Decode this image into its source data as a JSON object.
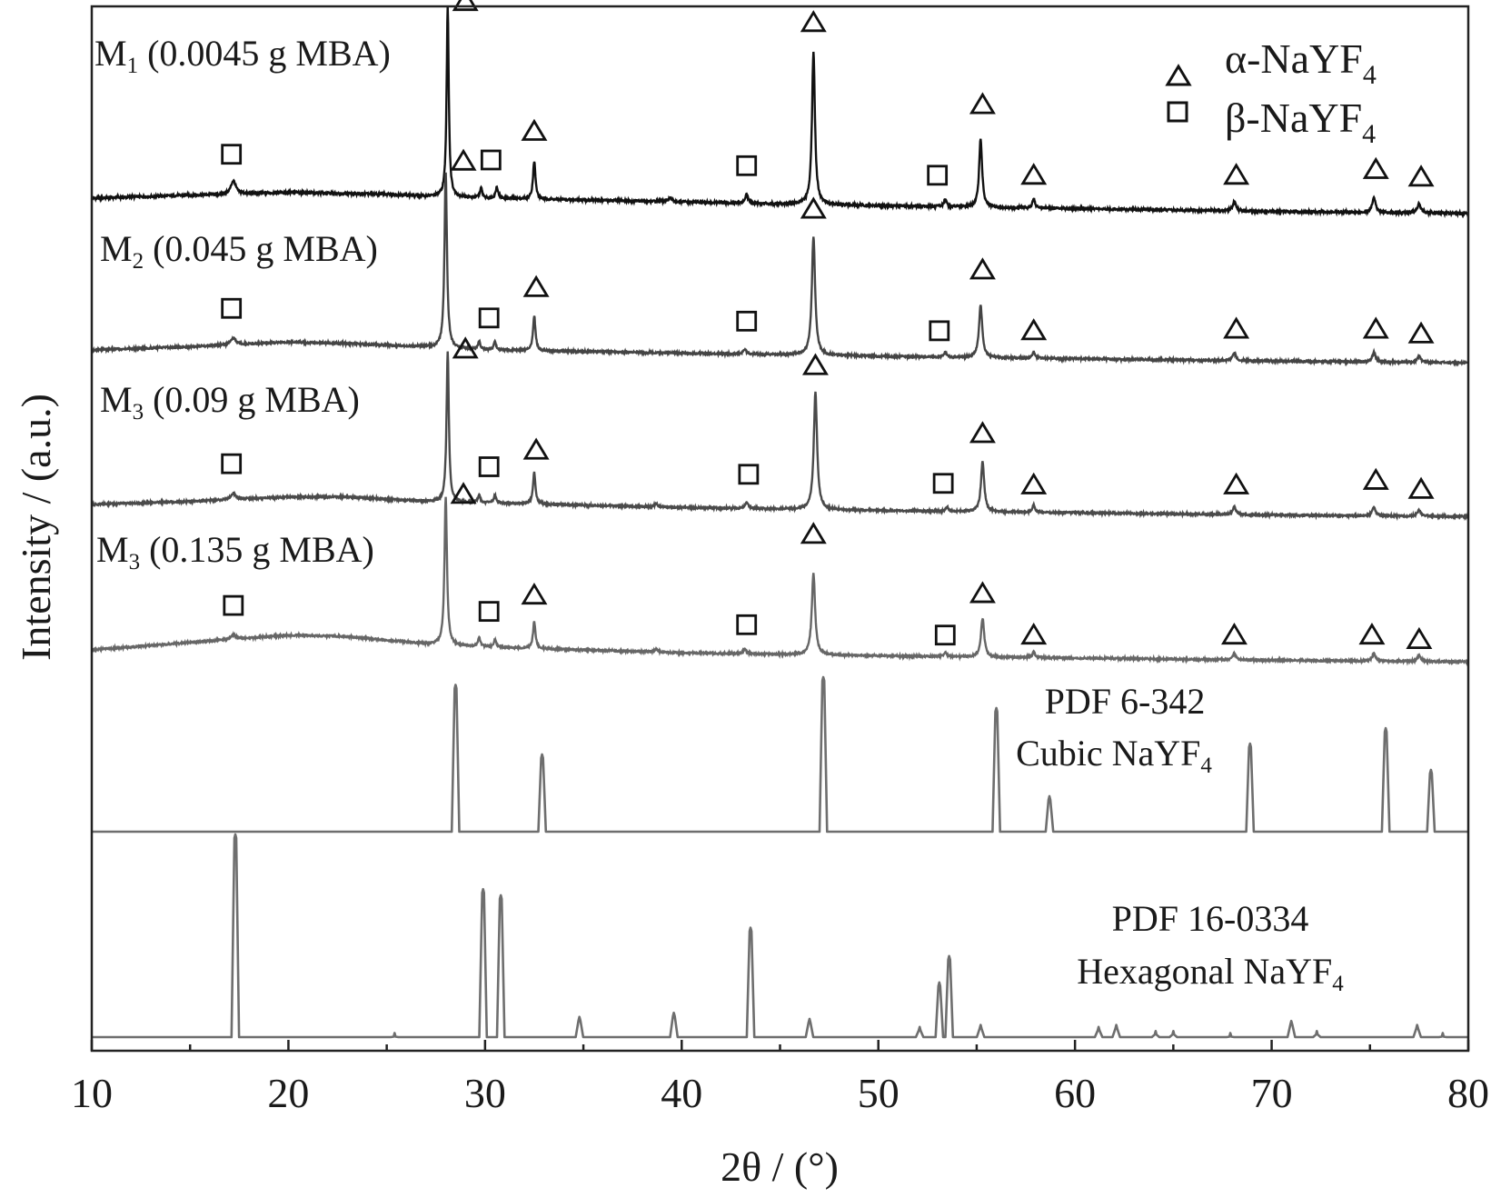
{
  "chart_data": {
    "type": "line",
    "xlabel": "2θ / (°)",
    "ylabel": "Intensity / (a.u.)",
    "xlim": [
      10,
      80
    ],
    "x_ticks": [
      "10",
      "20",
      "30",
      "40",
      "50",
      "60",
      "70",
      "80"
    ],
    "legend": {
      "position": "top-right",
      "entries": [
        {
          "symbol": "triangle",
          "label": "α-NaYF",
          "sub": "4",
          "phase": "alpha"
        },
        {
          "symbol": "square",
          "label": "β-NaYF",
          "sub": "4",
          "phase": "beta"
        }
      ]
    },
    "colors": {
      "m1": "#111111",
      "m2": "#444444",
      "m3": "#4a4a4a",
      "m4": "#666666",
      "ref": "#6e6e6e"
    },
    "series": [
      {
        "key": "m1",
        "label_main": "M",
        "label_sub": "1",
        "label_rest": " (0.0045 g MBA)",
        "baseline": [
          [
            10,
            0
          ],
          [
            15,
            0.015
          ],
          [
            20,
            0.03
          ],
          [
            25,
            0.02
          ],
          [
            27,
            0.01
          ],
          [
            30,
            0.0
          ],
          [
            40,
            -0.02
          ],
          [
            50,
            -0.04
          ],
          [
            60,
            -0.055
          ],
          [
            70,
            -0.07
          ],
          [
            80,
            -0.08
          ]
        ],
        "peaks": [
          [
            17.2,
            0.07,
            0.3
          ],
          [
            28.1,
            1.0,
            0.13
          ],
          [
            29.8,
            0.05,
            0.15
          ],
          [
            30.6,
            0.06,
            0.15
          ],
          [
            32.5,
            0.2,
            0.15
          ],
          [
            39.4,
            0.02,
            0.2
          ],
          [
            43.3,
            0.05,
            0.15
          ],
          [
            46.7,
            0.8,
            0.18
          ],
          [
            53.4,
            0.04,
            0.15
          ],
          [
            55.2,
            0.36,
            0.18
          ],
          [
            57.9,
            0.05,
            0.15
          ],
          [
            68.1,
            0.05,
            0.2
          ],
          [
            75.2,
            0.08,
            0.2
          ],
          [
            77.5,
            0.05,
            0.2
          ]
        ],
        "markers": {
          "alpha": [
            [
              29.0,
              1.03
            ],
            [
              32.5,
              0.35
            ],
            [
              46.7,
              0.92
            ],
            [
              55.3,
              0.49
            ],
            [
              57.9,
              0.12
            ],
            [
              68.2,
              0.12
            ],
            [
              75.3,
              0.15
            ],
            [
              77.6,
              0.11
            ]
          ],
          "beta": [
            [
              17.1,
              0.23
            ],
            [
              30.3,
              0.2
            ],
            [
              43.3,
              0.17
            ],
            [
              53.0,
              0.12
            ]
          ]
        }
      },
      {
        "key": "m2",
        "label_main": "M",
        "label_sub": "2",
        "label_rest": " (0.045 g MBA)",
        "baseline": [
          [
            10,
            0
          ],
          [
            15,
            0.02
          ],
          [
            20,
            0.05
          ],
          [
            23,
            0.04
          ],
          [
            27,
            0.02
          ],
          [
            30,
            0.0
          ],
          [
            40,
            -0.02
          ],
          [
            50,
            -0.04
          ],
          [
            60,
            -0.055
          ],
          [
            70,
            -0.07
          ],
          [
            80,
            -0.08
          ]
        ],
        "peaks": [
          [
            17.2,
            0.04,
            0.3
          ],
          [
            28.0,
            1.1,
            0.15
          ],
          [
            29.7,
            0.05,
            0.15
          ],
          [
            30.5,
            0.05,
            0.15
          ],
          [
            32.5,
            0.22,
            0.15
          ],
          [
            43.2,
            0.03,
            0.2
          ],
          [
            46.7,
            0.74,
            0.2
          ],
          [
            53.4,
            0.03,
            0.15
          ],
          [
            55.2,
            0.33,
            0.2
          ],
          [
            57.9,
            0.04,
            0.15
          ],
          [
            68.1,
            0.05,
            0.2
          ],
          [
            75.2,
            0.06,
            0.2
          ],
          [
            77.5,
            0.04,
            0.2
          ]
        ],
        "markers": {
          "alpha": [
            [
              28.9,
              1.18
            ],
            [
              32.6,
              0.39
            ],
            [
              46.7,
              0.88
            ],
            [
              55.3,
              0.5
            ],
            [
              57.9,
              0.12
            ],
            [
              68.2,
              0.13
            ],
            [
              75.3,
              0.13
            ],
            [
              77.6,
              0.1
            ]
          ],
          "beta": [
            [
              17.1,
              0.26
            ],
            [
              30.2,
              0.2
            ],
            [
              43.3,
              0.18
            ],
            [
              53.1,
              0.12
            ]
          ]
        }
      },
      {
        "key": "m3",
        "label_main": "M",
        "label_sub": "3",
        "label_rest": " (0.09 g MBA)",
        "baseline": [
          [
            10,
            0
          ],
          [
            15,
            0.02
          ],
          [
            20,
            0.05
          ],
          [
            23,
            0.05
          ],
          [
            27,
            0.02
          ],
          [
            30,
            0.01
          ],
          [
            40,
            -0.02
          ],
          [
            50,
            -0.04
          ],
          [
            60,
            -0.055
          ],
          [
            70,
            -0.07
          ],
          [
            80,
            -0.08
          ]
        ],
        "peaks": [
          [
            17.2,
            0.04,
            0.3
          ],
          [
            28.1,
            1.0,
            0.14
          ],
          [
            29.7,
            0.05,
            0.15
          ],
          [
            30.5,
            0.05,
            0.15
          ],
          [
            32.5,
            0.21,
            0.15
          ],
          [
            38.7,
            0.02,
            0.2
          ],
          [
            43.3,
            0.04,
            0.2
          ],
          [
            46.8,
            0.78,
            0.2
          ],
          [
            53.5,
            0.03,
            0.15
          ],
          [
            55.3,
            0.33,
            0.2
          ],
          [
            57.9,
            0.05,
            0.15
          ],
          [
            68.1,
            0.05,
            0.2
          ],
          [
            75.2,
            0.06,
            0.2
          ],
          [
            77.5,
            0.04,
            0.2
          ]
        ],
        "markers": {
          "alpha": [
            [
              29.0,
              1.03
            ],
            [
              32.6,
              0.36
            ],
            [
              46.8,
              0.92
            ],
            [
              55.3,
              0.47
            ],
            [
              57.9,
              0.13
            ],
            [
              68.2,
              0.13
            ],
            [
              75.3,
              0.16
            ],
            [
              77.6,
              0.1
            ]
          ],
          "beta": [
            [
              17.1,
              0.27
            ],
            [
              30.2,
              0.25
            ],
            [
              43.4,
              0.2
            ],
            [
              53.3,
              0.14
            ]
          ]
        }
      },
      {
        "key": "m4",
        "label_main": "M",
        "label_sub": "3",
        "label_rest": " (0.135 g MBA)",
        "baseline": [
          [
            10,
            0
          ],
          [
            15,
            0.05
          ],
          [
            20,
            0.1
          ],
          [
            23,
            0.09
          ],
          [
            27,
            0.04
          ],
          [
            30,
            0.02
          ],
          [
            40,
            -0.02
          ],
          [
            50,
            -0.04
          ],
          [
            60,
            -0.055
          ],
          [
            70,
            -0.07
          ],
          [
            80,
            -0.08
          ]
        ],
        "peaks": [
          [
            17.2,
            0.03,
            0.3
          ],
          [
            28.0,
            1.0,
            0.15
          ],
          [
            29.7,
            0.06,
            0.15
          ],
          [
            30.5,
            0.05,
            0.15
          ],
          [
            32.5,
            0.18,
            0.15
          ],
          [
            38.7,
            0.02,
            0.2
          ],
          [
            43.2,
            0.03,
            0.2
          ],
          [
            46.7,
            0.55,
            0.2
          ],
          [
            53.4,
            0.03,
            0.15
          ],
          [
            55.3,
            0.26,
            0.2
          ],
          [
            57.9,
            0.04,
            0.15
          ],
          [
            68.1,
            0.04,
            0.2
          ],
          [
            75.2,
            0.05,
            0.2
          ],
          [
            77.5,
            0.04,
            0.2
          ]
        ],
        "markers": {
          "alpha": [
            [
              28.9,
              1.05
            ],
            [
              32.5,
              0.37
            ],
            [
              46.7,
              0.78
            ],
            [
              55.3,
              0.38
            ],
            [
              57.9,
              0.1
            ],
            [
              68.1,
              0.1
            ],
            [
              75.1,
              0.1
            ],
            [
              77.5,
              0.07
            ]
          ],
          "beta": [
            [
              17.2,
              0.3
            ],
            [
              30.2,
              0.26
            ],
            [
              43.3,
              0.17
            ],
            [
              53.4,
              0.1
            ]
          ]
        }
      },
      {
        "key": "cubic",
        "label_main": "PDF 6-342",
        "label_line2": "Cubic NaYF",
        "label_sub": "4",
        "reference_peaks": [
          [
            28.5,
            0.95
          ],
          [
            32.9,
            0.5
          ],
          [
            47.2,
            1.0
          ],
          [
            56.0,
            0.8
          ],
          [
            58.7,
            0.23
          ],
          [
            68.9,
            0.57
          ],
          [
            75.8,
            0.67
          ],
          [
            78.1,
            0.4
          ]
        ]
      },
      {
        "key": "hexagonal",
        "label_main": "PDF 16-0334",
        "label_line2": "Hexagonal NaYF",
        "label_sub": "4",
        "reference_peaks": [
          [
            17.3,
            1.0
          ],
          [
            25.4,
            0.02
          ],
          [
            29.9,
            0.73
          ],
          [
            30.8,
            0.7
          ],
          [
            34.8,
            0.1
          ],
          [
            39.6,
            0.12
          ],
          [
            43.5,
            0.54
          ],
          [
            46.5,
            0.09
          ],
          [
            52.1,
            0.05
          ],
          [
            53.1,
            0.27
          ],
          [
            53.6,
            0.4
          ],
          [
            55.2,
            0.06
          ],
          [
            61.2,
            0.05
          ],
          [
            62.1,
            0.06
          ],
          [
            64.1,
            0.03
          ],
          [
            65.0,
            0.03
          ],
          [
            67.9,
            0.02
          ],
          [
            71.0,
            0.08
          ],
          [
            72.3,
            0.03
          ],
          [
            77.4,
            0.06
          ],
          [
            78.7,
            0.02
          ]
        ]
      }
    ]
  }
}
